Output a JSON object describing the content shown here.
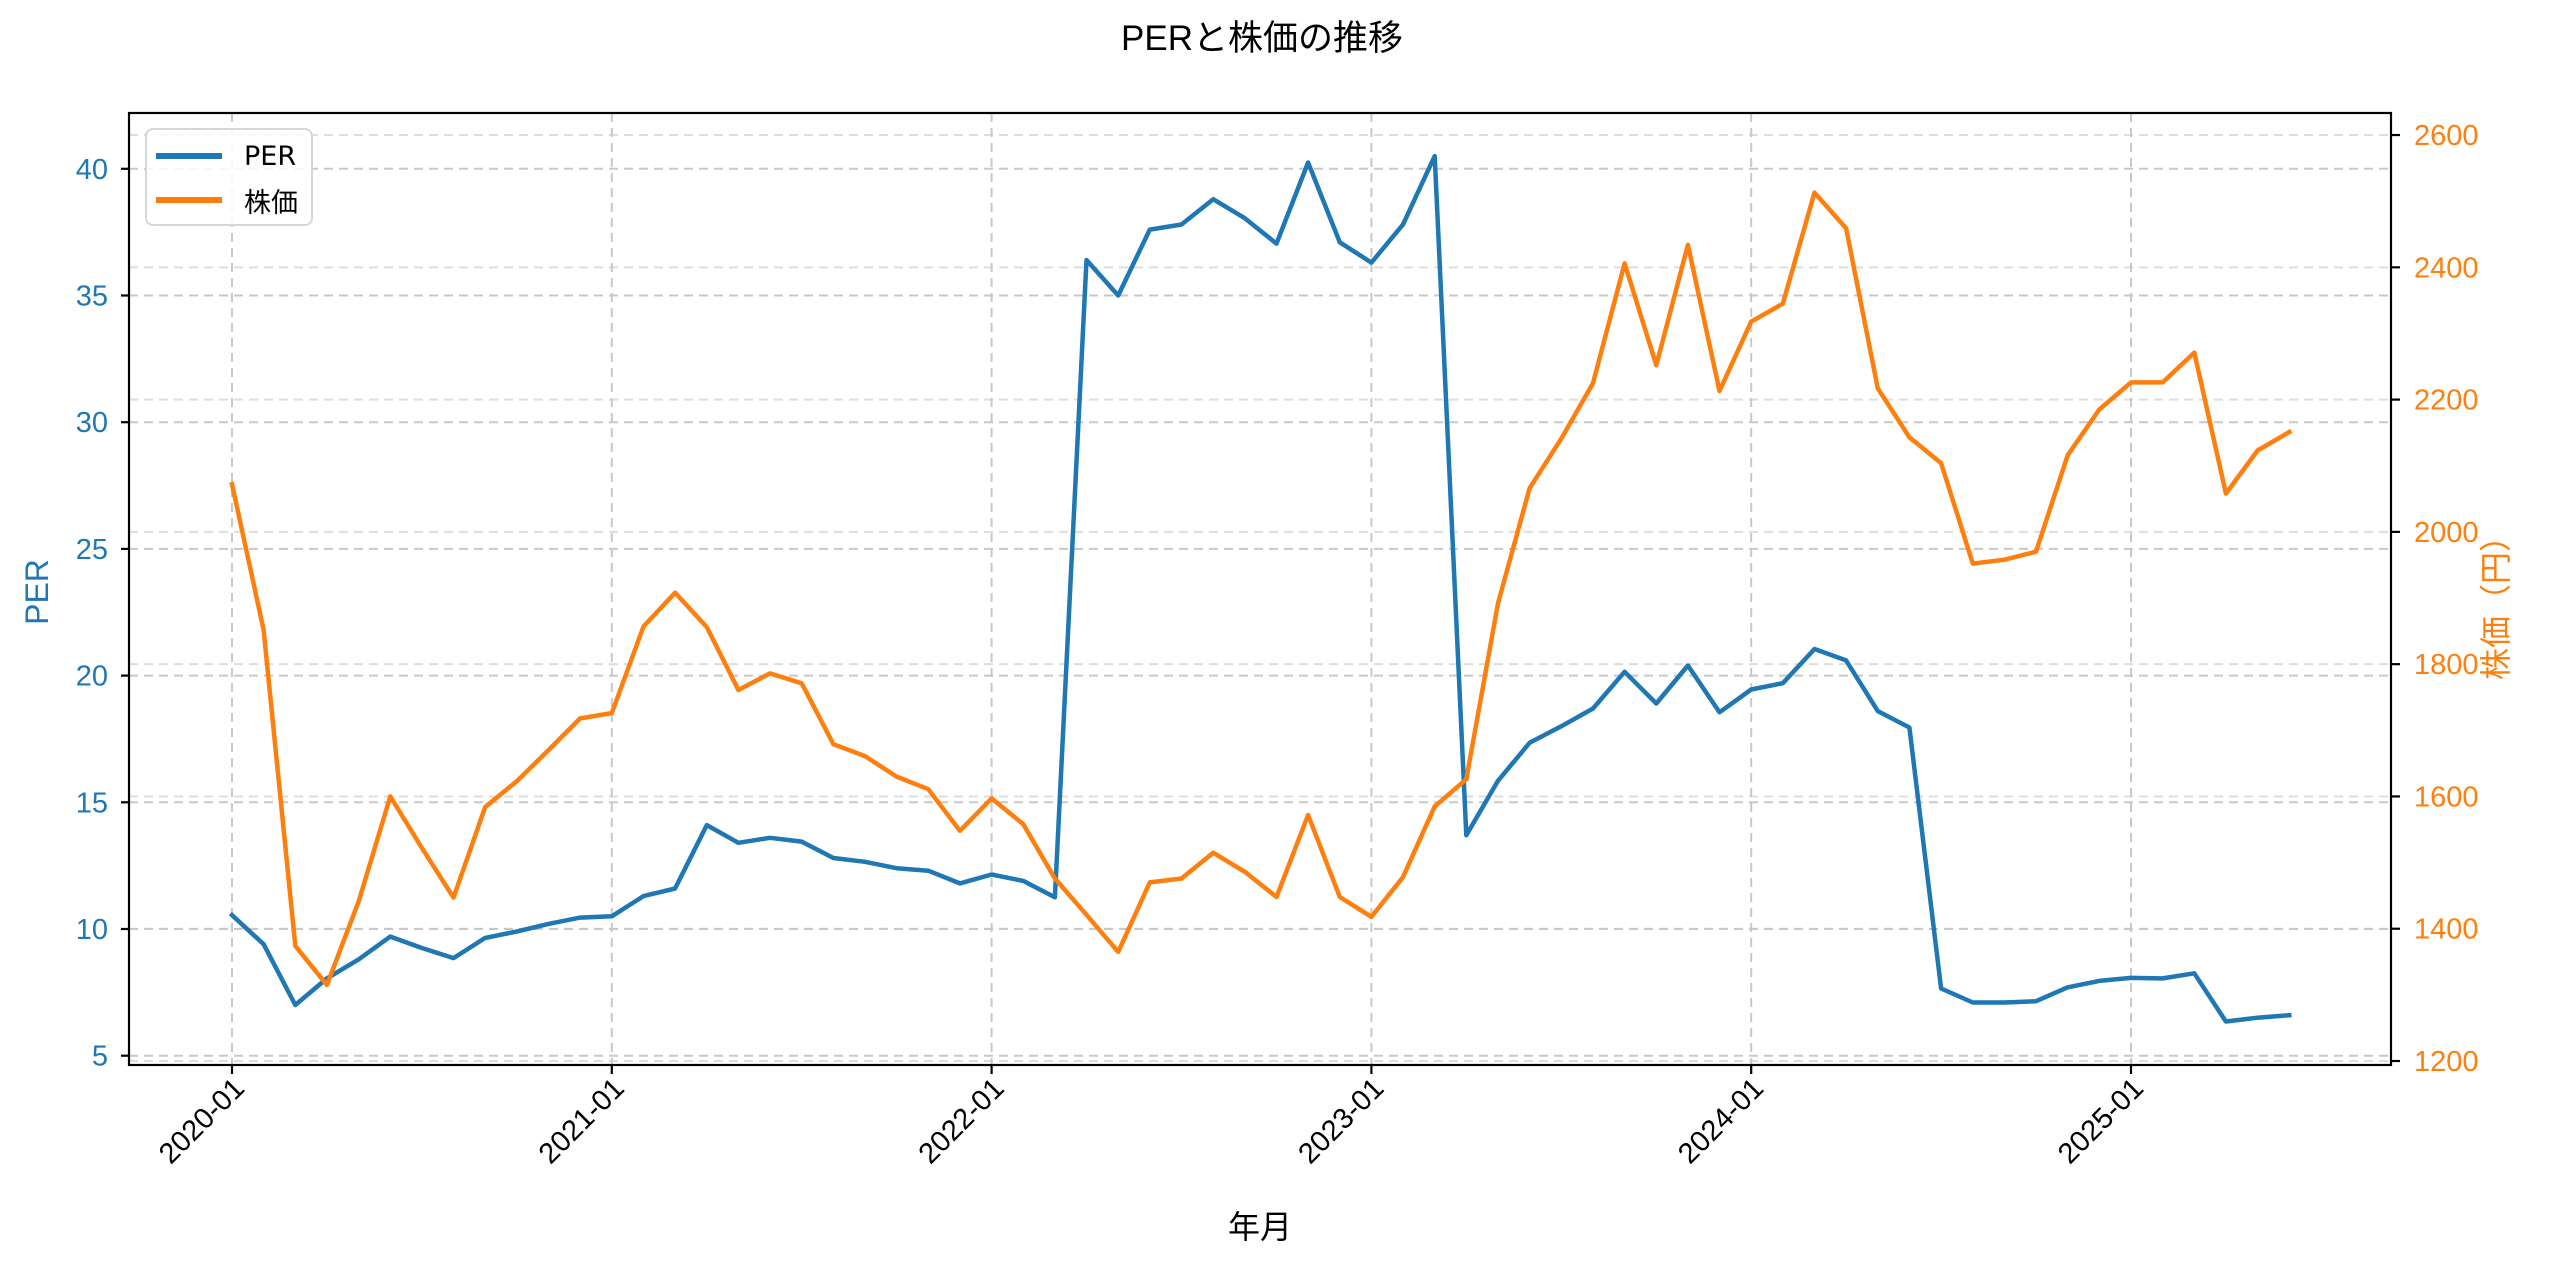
{
  "chart_data": {
    "type": "line",
    "title": "PERと株価の推移",
    "xlabel": "年月",
    "ylabel": "PER",
    "ylabel_right": "株価（円）",
    "ylim": [
      4.5,
      42.2
    ],
    "ylim_right": [
      1194,
      2634
    ],
    "yticks": [
      5,
      10,
      15,
      20,
      25,
      30,
      35,
      40
    ],
    "yticks_right": [
      1200,
      1400,
      1600,
      1800,
      2000,
      2200,
      2400,
      2600
    ],
    "xtick_labels": [
      "2020-01",
      "2021-01",
      "2022-01",
      "2023-01",
      "2024-01",
      "2025-01"
    ],
    "grid": true,
    "legend_position": "upper left",
    "x": [
      "2020-01",
      "2020-02",
      "2020-03",
      "2020-04",
      "2020-05",
      "2020-06",
      "2020-07",
      "2020-08",
      "2020-09",
      "2020-10",
      "2020-11",
      "2020-12",
      "2021-01",
      "2021-02",
      "2021-03",
      "2021-04",
      "2021-05",
      "2021-06",
      "2021-07",
      "2021-08",
      "2021-09",
      "2021-10",
      "2021-11",
      "2021-12",
      "2022-01",
      "2022-02",
      "2022-03",
      "2022-04",
      "2022-05",
      "2022-06",
      "2022-07",
      "2022-08",
      "2022-09",
      "2022-10",
      "2022-11",
      "2022-12",
      "2023-01",
      "2023-02",
      "2023-03",
      "2023-04",
      "2023-05",
      "2023-06",
      "2023-07",
      "2023-08",
      "2023-09",
      "2023-10",
      "2023-11",
      "2023-12",
      "2024-01",
      "2024-02",
      "2024-03",
      "2024-04",
      "2024-05",
      "2024-06",
      "2024-07",
      "2024-08",
      "2024-09",
      "2024-10",
      "2024-11",
      "2024-12",
      "2025-01",
      "2025-02",
      "2025-03",
      "2025-04",
      "2025-05",
      "2025-06"
    ],
    "series": [
      {
        "name": "PER",
        "axis": "left",
        "color": "#1f77b4",
        "values": [
          10.55,
          9.4,
          7.0,
          8.05,
          8.8,
          9.7,
          9.25,
          8.85,
          9.65,
          9.9,
          10.2,
          10.45,
          10.5,
          11.3,
          11.6,
          14.1,
          13.4,
          13.6,
          13.45,
          12.8,
          12.65,
          12.4,
          12.3,
          11.8,
          12.15,
          11.9,
          11.25,
          36.4,
          35.0,
          37.6,
          37.8,
          38.8,
          38.05,
          37.05,
          40.25,
          37.1,
          36.3,
          37.8,
          40.5,
          13.7,
          15.85,
          17.35,
          18.0,
          18.7,
          20.15,
          18.9,
          20.4,
          18.55,
          19.45,
          19.7,
          21.05,
          20.6,
          18.6,
          17.95,
          7.65,
          7.1,
          7.1,
          7.15,
          7.7,
          7.95,
          8.07,
          8.05,
          8.25,
          6.35,
          6.5,
          6.6
        ]
      },
      {
        "name": "株価",
        "axis": "right",
        "color": "#ff7f0e",
        "values": [
          2072,
          1852,
          1374,
          1315,
          1441,
          1600,
          1522,
          1447,
          1584,
          1623,
          1670,
          1718,
          1726,
          1857,
          1908,
          1856,
          1761,
          1786,
          1771,
          1679,
          1661,
          1630,
          1611,
          1548,
          1597,
          1558,
          1476,
          1421,
          1365,
          1470,
          1476,
          1515,
          1486,
          1448,
          1572,
          1448,
          1418,
          1478,
          1585,
          1626,
          1892,
          2066,
          2141,
          2225,
          2406,
          2252,
          2434,
          2213,
          2318,
          2345,
          2513,
          2459,
          2217,
          2143,
          2104,
          1952,
          1958,
          1970,
          2116,
          2185,
          2226,
          2226,
          2271,
          2058,
          2123,
          2151
        ]
      }
    ]
  },
  "legend": {
    "items": [
      {
        "label": "PER",
        "color": "#1f77b4"
      },
      {
        "label": "株価",
        "color": "#ff7f0e"
      }
    ]
  },
  "colors": {
    "per": "#1f77b4",
    "price": "#ff7f0e",
    "grid": "#c8c8c8",
    "axis": "#000000"
  }
}
